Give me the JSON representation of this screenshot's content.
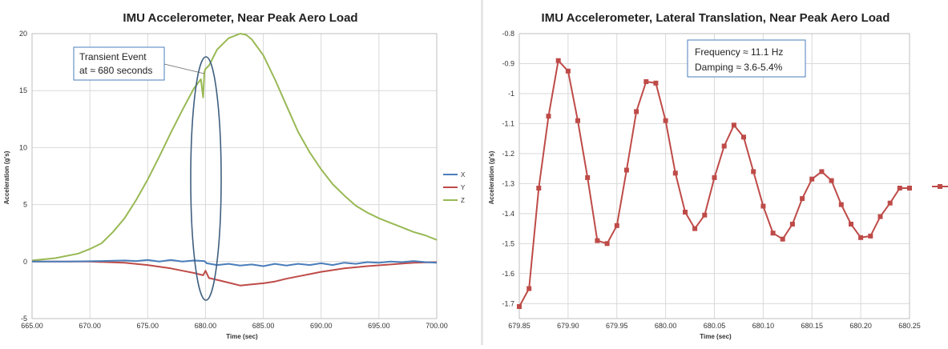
{
  "chart_data": [
    {
      "type": "line",
      "title": "IMU Accelerometer, Near Peak Aero Load",
      "xlabel": "Time (sec)",
      "ylabel": "Acceleration (g's)",
      "xlim": [
        665,
        700
      ],
      "ylim": [
        -5,
        20
      ],
      "x_ticks": [
        "665.00",
        "670.00",
        "675.00",
        "680.00",
        "685.00",
        "690.00",
        "695.00",
        "700.00"
      ],
      "y_ticks": [
        "-5",
        "0",
        "5",
        "10",
        "15",
        "20"
      ],
      "grid": true,
      "legend_position": "right",
      "colors": {
        "X": "#4a7ebb",
        "Y": "#be4b48",
        "Z": "#98b954",
        "ellipse": "#3f5f7f"
      },
      "annotation": {
        "lines": [
          "Transient Event",
          "at ≈ 680 seconds"
        ]
      },
      "series": [
        {
          "name": "X",
          "x": [
            665,
            668,
            671,
            673,
            674,
            675,
            676,
            677,
            678,
            679,
            679.9,
            680.1,
            681,
            682,
            683,
            684,
            685,
            686,
            687,
            688,
            689,
            690,
            691,
            692,
            693,
            694,
            695,
            696,
            697,
            698,
            699,
            700
          ],
          "y": [
            0,
            0,
            0.05,
            0.1,
            0.05,
            0.15,
            0,
            0.15,
            0.0,
            0.1,
            0.05,
            -0.15,
            -0.3,
            -0.2,
            -0.35,
            -0.25,
            -0.4,
            -0.2,
            -0.35,
            -0.2,
            -0.3,
            -0.15,
            -0.3,
            -0.1,
            -0.2,
            -0.05,
            -0.1,
            0.0,
            -0.05,
            0.05,
            -0.05,
            -0.1
          ]
        },
        {
          "name": "Y",
          "x": [
            665,
            670,
            673,
            675,
            677,
            678,
            679,
            679.8,
            680.0,
            680.3,
            681,
            682,
            683,
            684,
            685,
            686,
            687,
            688,
            689,
            690,
            692,
            694,
            696,
            698,
            700
          ],
          "y": [
            0,
            0,
            -0.1,
            -0.3,
            -0.6,
            -0.8,
            -1.0,
            -1.2,
            -0.8,
            -1.45,
            -1.6,
            -1.85,
            -2.1,
            -2.0,
            -1.9,
            -1.75,
            -1.5,
            -1.3,
            -1.1,
            -0.9,
            -0.6,
            -0.4,
            -0.25,
            -0.1,
            -0.05
          ]
        },
        {
          "name": "Z",
          "x": [
            665,
            667,
            669,
            670,
            671,
            672,
            673,
            674,
            675,
            676,
            677,
            678,
            679,
            679.6,
            679.8,
            679.9,
            680.0,
            680.3,
            681,
            682,
            683,
            683.5,
            684,
            685,
            686,
            687,
            688,
            689,
            690,
            691,
            692,
            693,
            694,
            695,
            696,
            697,
            698,
            699,
            700
          ],
          "y": [
            0.1,
            0.3,
            0.7,
            1.1,
            1.6,
            2.6,
            3.8,
            5.4,
            7.2,
            9.2,
            11.3,
            13.3,
            15.2,
            16.0,
            14.4,
            16.6,
            16.9,
            17.2,
            18.6,
            19.6,
            20.0,
            19.9,
            19.5,
            18.1,
            16.0,
            13.7,
            11.4,
            9.6,
            8.1,
            6.8,
            5.8,
            4.9,
            4.3,
            3.8,
            3.4,
            3.0,
            2.6,
            2.3,
            1.9
          ]
        }
      ]
    },
    {
      "type": "line",
      "title": "IMU Accelerometer, Lateral Translation, Near Peak Aero Load",
      "xlabel": "Time (sec)",
      "ylabel": "Acceleration (g's)",
      "xlim": [
        679.85,
        680.25
      ],
      "ylim": [
        -1.75,
        -0.8
      ],
      "x_ticks": [
        "679.85",
        "679.90",
        "679.95",
        "680.00",
        "680.05",
        "680.10",
        "680.15",
        "680.20",
        "680.25"
      ],
      "y_ticks": [
        "-0.8",
        "-0.9",
        "-1",
        "-1.1",
        "-1.2",
        "-1.3",
        "-1.4",
        "-1.5",
        "-1.6",
        "-1.7"
      ],
      "grid": true,
      "legend_position": "right",
      "colors": {
        "series": "#be4b48"
      },
      "annotation": {
        "lines": [
          "Frequency ≈ 11.1 Hz",
          "Damping ≈ 3.6-5.4%"
        ]
      },
      "series": [
        {
          "name": "",
          "x": [
            679.85,
            679.86,
            679.87,
            679.88,
            679.89,
            679.9,
            679.91,
            679.92,
            679.93,
            679.94,
            679.95,
            679.96,
            679.97,
            679.98,
            679.99,
            680.0,
            680.01,
            680.02,
            680.03,
            680.04,
            680.05,
            680.06,
            680.07,
            680.08,
            680.09,
            680.1,
            680.11,
            680.12,
            680.13,
            680.14,
            680.15,
            680.16,
            680.17,
            680.18,
            680.19,
            680.2,
            680.21,
            680.22,
            680.23,
            680.24,
            680.25
          ],
          "y": [
            -1.71,
            -1.65,
            -1.315,
            -1.075,
            -0.89,
            -0.925,
            -1.09,
            -1.28,
            -1.49,
            -1.5,
            -1.44,
            -1.255,
            -1.06,
            -0.96,
            -0.965,
            -1.09,
            -1.265,
            -1.395,
            -1.45,
            -1.405,
            -1.28,
            -1.175,
            -1.105,
            -1.145,
            -1.26,
            -1.375,
            -1.465,
            -1.485,
            -1.435,
            -1.35,
            -1.285,
            -1.26,
            -1.29,
            -1.37,
            -1.435,
            -1.48,
            -1.475,
            -1.41,
            -1.365,
            -1.315,
            -1.315
          ]
        }
      ]
    }
  ]
}
